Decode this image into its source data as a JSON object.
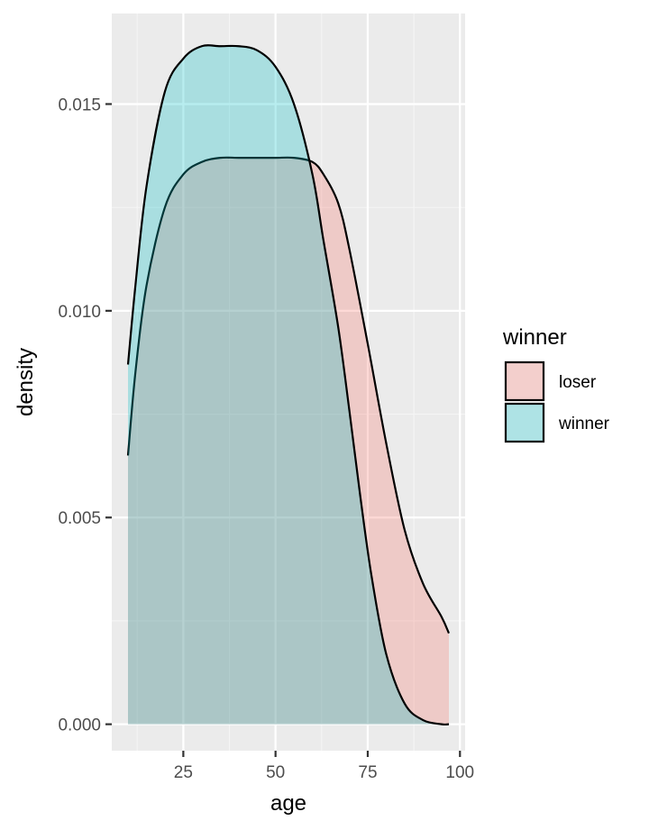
{
  "chart_data": {
    "type": "area",
    "subtype": "density",
    "xlabel": "age",
    "ylabel": "density",
    "xlim": [
      5.6,
      101.4
    ],
    "ylim": [
      -0.00064,
      0.01719
    ],
    "x_ticks": [
      25,
      50,
      75,
      100
    ],
    "x_tick_labels": [
      "25",
      "50",
      "75",
      "100"
    ],
    "x_minor_ticks": [
      12.5,
      37.5,
      62.5,
      87.5
    ],
    "y_ticks": [
      0.0,
      0.005,
      0.01,
      0.015
    ],
    "y_tick_labels": [
      "0.000",
      "0.005",
      "0.010",
      "0.015"
    ],
    "y_minor_ticks": [
      0.0025,
      0.0075,
      0.0125
    ],
    "grid": true,
    "legend": {
      "title": "winner",
      "position": "right"
    },
    "series": [
      {
        "name": "loser",
        "fill": "#F8766D",
        "x": [
          10,
          12,
          15,
          20,
          25,
          30,
          35,
          40,
          45,
          50,
          55,
          60,
          63,
          67,
          70,
          75,
          80,
          85,
          90,
          95,
          97
        ],
        "y": [
          0.0065,
          0.0085,
          0.0106,
          0.0125,
          0.0133,
          0.0136,
          0.0137,
          0.0137,
          0.0137,
          0.0137,
          0.0137,
          0.0136,
          0.0133,
          0.0126,
          0.0115,
          0.0092,
          0.0068,
          0.0047,
          0.0034,
          0.0026,
          0.0022
        ]
      },
      {
        "name": "winner",
        "fill": "#00BFC4",
        "x": [
          10,
          12,
          15,
          20,
          25,
          30,
          35,
          40,
          45,
          50,
          55,
          60,
          63,
          67,
          70,
          73,
          76,
          80,
          85,
          90,
          95,
          97
        ],
        "y": [
          0.0087,
          0.0106,
          0.013,
          0.0153,
          0.0161,
          0.0164,
          0.0164,
          0.0164,
          0.0163,
          0.0159,
          0.015,
          0.0133,
          0.0117,
          0.0096,
          0.0076,
          0.0055,
          0.0036,
          0.0017,
          0.0005,
          0.0001,
          0.0,
          0.0
        ]
      }
    ]
  }
}
